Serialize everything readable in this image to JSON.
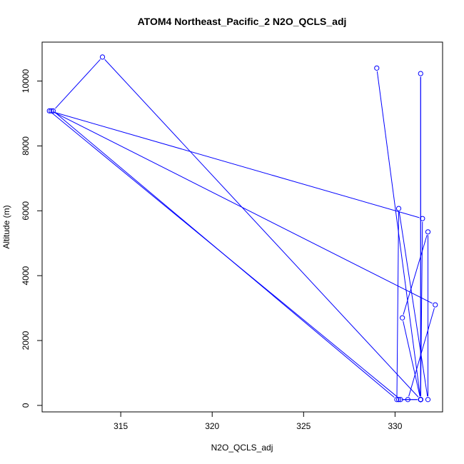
{
  "chart_data": {
    "type": "line",
    "title": "ATOM4 Northeast_Pacific_2 N2O_QCLS_adj",
    "xlabel": "N2O_QCLS_adj",
    "ylabel": "Altitude (m)",
    "xlim": [
      310.7,
      332.6
    ],
    "ylim": [
      -200,
      11200
    ],
    "xticks": [
      315,
      320,
      325,
      330
    ],
    "yticks": [
      0,
      2000,
      4000,
      6000,
      8000,
      10000
    ],
    "grid": false,
    "legend": "none",
    "series_color": "#0000ff",
    "points": [
      {
        "x": 329.0,
        "y": 10400
      },
      {
        "x": 331.4,
        "y": 180
      },
      {
        "x": 331.4,
        "y": 10230
      },
      {
        "x": 331.4,
        "y": 180
      },
      {
        "x": 331.4,
        "y": 180
      },
      {
        "x": 330.3,
        "y": 180
      },
      {
        "x": 311.1,
        "y": 9080
      },
      {
        "x": 331.5,
        "y": 5760
      },
      {
        "x": 331.4,
        "y": 180
      },
      {
        "x": 331.4,
        "y": 180
      },
      {
        "x": 330.4,
        "y": 2700
      },
      {
        "x": 331.8,
        "y": 5350
      },
      {
        "x": 331.8,
        "y": 180
      },
      {
        "x": 330.2,
        "y": 6070
      },
      {
        "x": 330.1,
        "y": 180
      },
      {
        "x": 311.3,
        "y": 9080
      },
      {
        "x": 314.0,
        "y": 10740
      },
      {
        "x": 331.4,
        "y": 180
      },
      {
        "x": 330.2,
        "y": 180
      },
      {
        "x": 330.7,
        "y": 180
      },
      {
        "x": 332.2,
        "y": 3100
      },
      {
        "x": 311.2,
        "y": 9080
      }
    ]
  }
}
